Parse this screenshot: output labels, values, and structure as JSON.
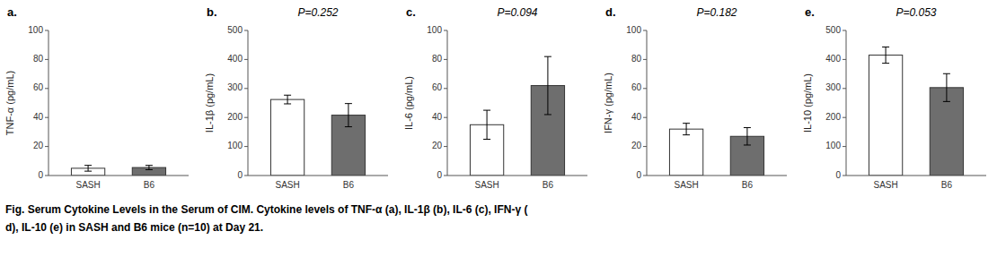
{
  "chart_data": [
    {
      "type": "bar",
      "title": "a.",
      "ylabel": "TNF-α (pg/mL)",
      "categories": [
        "SASH",
        "B6"
      ],
      "values": [
        5.0,
        5.5
      ],
      "errors": [
        2.0,
        1.5
      ],
      "colors": [
        "#ffffff",
        "#6e6e6e"
      ],
      "ylim": [
        0,
        100
      ],
      "yticks": [
        0,
        20,
        40,
        60,
        80,
        100
      ],
      "grid": false
    },
    {
      "type": "bar",
      "title": "b.",
      "annotations": [
        "P=0.252"
      ],
      "ylabel": "IL-1β (pg/mL)",
      "categories": [
        "SASH",
        "B6"
      ],
      "values": [
        262,
        208
      ],
      "errors": [
        15,
        40
      ],
      "colors": [
        "#ffffff",
        "#6e6e6e"
      ],
      "ylim": [
        0,
        500
      ],
      "yticks": [
        0,
        100,
        200,
        300,
        400,
        500
      ],
      "grid": false
    },
    {
      "type": "bar",
      "title": "c.",
      "annotations": [
        "P=0.094"
      ],
      "ylabel": "IL-6 (pg/mL)",
      "categories": [
        "SASH",
        "B6"
      ],
      "values": [
        35,
        62
      ],
      "errors": [
        10,
        20
      ],
      "colors": [
        "#ffffff",
        "#6e6e6e"
      ],
      "ylim": [
        0,
        100
      ],
      "yticks": [
        0,
        20,
        40,
        60,
        80,
        100
      ],
      "grid": false
    },
    {
      "type": "bar",
      "title": "d.",
      "annotations": [
        "P=0.182"
      ],
      "ylabel": "IFN-γ (pg/mL)",
      "categories": [
        "SASH",
        "B6"
      ],
      "values": [
        32,
        27
      ],
      "errors": [
        4,
        6
      ],
      "colors": [
        "#ffffff",
        "#6e6e6e"
      ],
      "ylim": [
        0,
        100
      ],
      "yticks": [
        0,
        20,
        40,
        60,
        80,
        100
      ],
      "grid": false
    },
    {
      "type": "bar",
      "title": "e.",
      "annotations": [
        "P=0.053"
      ],
      "ylabel": "IL-10 (pg/mL)",
      "categories": [
        "SASH",
        "B6"
      ],
      "values": [
        415,
        303
      ],
      "errors": [
        28,
        48
      ],
      "colors": [
        "#ffffff",
        "#6e6e6e"
      ],
      "ylim": [
        0,
        500
      ],
      "yticks": [
        0,
        100,
        200,
        300,
        400,
        500
      ],
      "grid": false
    }
  ],
  "caption": [
    "Fig. Serum Cytokine Levels in the Serum of CIM. Cytokine levels of TNF-α (a), IL-1β (b), IL-6 (c), IFN-γ (",
    "d), IL-10 (e) in SASH and B6 mice (n=10) at Day 21."
  ]
}
